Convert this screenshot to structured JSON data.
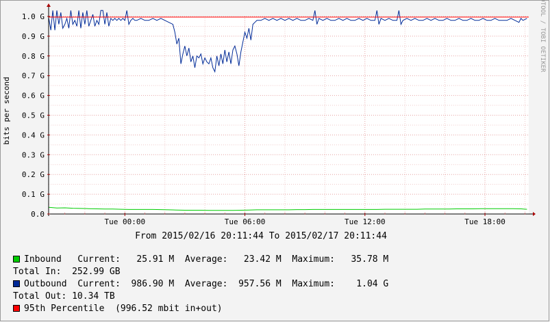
{
  "chart_data": {
    "type": "line",
    "ylabel": "bits per second",
    "watermark": "RRDTOOL / TOBI OETIKER",
    "subtitle": "From 2015/02/16 20:11:44 To 2015/02/17 20:11:44",
    "ylim": [
      0,
      1.0
    ],
    "y_ticks": [
      {
        "value": 0.0,
        "label": "0.0"
      },
      {
        "value": 0.1,
        "label": "0.1 G"
      },
      {
        "value": 0.2,
        "label": "0.2 G"
      },
      {
        "value": 0.3,
        "label": "0.3 G"
      },
      {
        "value": 0.4,
        "label": "0.4 G"
      },
      {
        "value": 0.5,
        "label": "0.5 G"
      },
      {
        "value": 0.6,
        "label": "0.6 G"
      },
      {
        "value": 0.7,
        "label": "0.7 G"
      },
      {
        "value": 0.8,
        "label": "0.8 G"
      },
      {
        "value": 0.9,
        "label": "0.9 G"
      },
      {
        "value": 1.0,
        "label": "1.0 G"
      }
    ],
    "xlim_hours": [
      -3.81,
      20.19
    ],
    "x_ticks": [
      {
        "value": 0,
        "label": "Tue 00:00"
      },
      {
        "value": 6,
        "label": "Tue 06:00"
      },
      {
        "value": 12,
        "label": "Tue 12:00"
      },
      {
        "value": 18,
        "label": "Tue 18:00"
      }
    ],
    "percentile_95_value": 0.99652,
    "series": [
      {
        "name": "Inbound",
        "color": "#00cc00",
        "points": [
          [
            -3.8,
            0.034
          ],
          [
            -3.4,
            0.03
          ],
          [
            -3.0,
            0.031
          ],
          [
            -2.6,
            0.029
          ],
          [
            -2.2,
            0.028
          ],
          [
            -1.8,
            0.027
          ],
          [
            -1.4,
            0.026
          ],
          [
            -1.0,
            0.025
          ],
          [
            -0.6,
            0.025
          ],
          [
            -0.2,
            0.024
          ],
          [
            0.2,
            0.023
          ],
          [
            0.6,
            0.023
          ],
          [
            1.0,
            0.023
          ],
          [
            1.4,
            0.023
          ],
          [
            1.8,
            0.022
          ],
          [
            2.2,
            0.021
          ],
          [
            2.6,
            0.02
          ],
          [
            3.0,
            0.019
          ],
          [
            3.4,
            0.019
          ],
          [
            3.8,
            0.019
          ],
          [
            4.2,
            0.018
          ],
          [
            4.6,
            0.018
          ],
          [
            5.0,
            0.018
          ],
          [
            5.4,
            0.018
          ],
          [
            5.8,
            0.019
          ],
          [
            6.2,
            0.02
          ],
          [
            6.6,
            0.021
          ],
          [
            7.0,
            0.021
          ],
          [
            7.4,
            0.021
          ],
          [
            7.8,
            0.021
          ],
          [
            8.2,
            0.021
          ],
          [
            8.6,
            0.022
          ],
          [
            9.0,
            0.022
          ],
          [
            9.4,
            0.023
          ],
          [
            9.8,
            0.023
          ],
          [
            10.2,
            0.023
          ],
          [
            10.6,
            0.023
          ],
          [
            11.0,
            0.023
          ],
          [
            11.4,
            0.023
          ],
          [
            11.8,
            0.023
          ],
          [
            12.2,
            0.023
          ],
          [
            12.6,
            0.023
          ],
          [
            13.0,
            0.024
          ],
          [
            13.4,
            0.024
          ],
          [
            13.8,
            0.024
          ],
          [
            14.2,
            0.024
          ],
          [
            14.6,
            0.024
          ],
          [
            15.0,
            0.025
          ],
          [
            15.4,
            0.025
          ],
          [
            15.8,
            0.025
          ],
          [
            16.2,
            0.025
          ],
          [
            16.6,
            0.026
          ],
          [
            17.0,
            0.026
          ],
          [
            17.4,
            0.026
          ],
          [
            17.8,
            0.027
          ],
          [
            18.2,
            0.027
          ],
          [
            18.6,
            0.027
          ],
          [
            19.0,
            0.027
          ],
          [
            19.4,
            0.027
          ],
          [
            19.8,
            0.026
          ],
          [
            20.1,
            0.024
          ]
        ]
      },
      {
        "name": "Outbound",
        "color": "#002a97",
        "points": [
          [
            -3.8,
            0.99
          ],
          [
            -3.7,
            0.93
          ],
          [
            -3.6,
            1.03
          ],
          [
            -3.5,
            0.93
          ],
          [
            -3.4,
            1.03
          ],
          [
            -3.3,
            0.96
          ],
          [
            -3.2,
            1.02
          ],
          [
            -3.1,
            0.94
          ],
          [
            -3.0,
            0.96
          ],
          [
            -2.9,
            0.99
          ],
          [
            -2.8,
            0.94
          ],
          [
            -2.7,
            1.03
          ],
          [
            -2.6,
            0.96
          ],
          [
            -2.5,
            0.98
          ],
          [
            -2.4,
            0.95
          ],
          [
            -2.3,
            1.03
          ],
          [
            -2.2,
            0.94
          ],
          [
            -2.1,
            1.02
          ],
          [
            -2.0,
            0.96
          ],
          [
            -1.9,
            1.03
          ],
          [
            -1.8,
            0.95
          ],
          [
            -1.7,
            0.98
          ],
          [
            -1.6,
            1.01
          ],
          [
            -1.5,
            0.95
          ],
          [
            -1.4,
            0.98
          ],
          [
            -1.3,
            0.96
          ],
          [
            -1.2,
            1.03
          ],
          [
            -1.1,
            1.03
          ],
          [
            -1.0,
            0.96
          ],
          [
            -0.9,
            1.02
          ],
          [
            -0.8,
            0.95
          ],
          [
            -0.7,
            0.99
          ],
          [
            -0.6,
            0.98
          ],
          [
            -0.5,
            0.99
          ],
          [
            -0.4,
            0.98
          ],
          [
            -0.3,
            0.99
          ],
          [
            -0.2,
            0.98
          ],
          [
            -0.1,
            0.99
          ],
          [
            0.0,
            0.98
          ],
          [
            0.1,
            1.03
          ],
          [
            0.2,
            0.96
          ],
          [
            0.3,
            0.98
          ],
          [
            0.4,
            0.99
          ],
          [
            0.5,
            0.98
          ],
          [
            0.6,
            0.98
          ],
          [
            0.8,
            0.99
          ],
          [
            1.0,
            0.98
          ],
          [
            1.2,
            0.98
          ],
          [
            1.4,
            0.99
          ],
          [
            1.6,
            0.98
          ],
          [
            1.8,
            0.99
          ],
          [
            2.0,
            0.98
          ],
          [
            2.2,
            0.97
          ],
          [
            2.4,
            0.96
          ],
          [
            2.5,
            0.92
          ],
          [
            2.6,
            0.86
          ],
          [
            2.7,
            0.89
          ],
          [
            2.8,
            0.76
          ],
          [
            2.9,
            0.81
          ],
          [
            3.0,
            0.85
          ],
          [
            3.1,
            0.8
          ],
          [
            3.2,
            0.84
          ],
          [
            3.3,
            0.77
          ],
          [
            3.4,
            0.8
          ],
          [
            3.5,
            0.74
          ],
          [
            3.6,
            0.8
          ],
          [
            3.7,
            0.79
          ],
          [
            3.8,
            0.81
          ],
          [
            3.9,
            0.76
          ],
          [
            4.0,
            0.79
          ],
          [
            4.1,
            0.77
          ],
          [
            4.2,
            0.76
          ],
          [
            4.3,
            0.79
          ],
          [
            4.4,
            0.74
          ],
          [
            4.5,
            0.72
          ],
          [
            4.6,
            0.8
          ],
          [
            4.7,
            0.75
          ],
          [
            4.8,
            0.81
          ],
          [
            4.9,
            0.76
          ],
          [
            5.0,
            0.83
          ],
          [
            5.1,
            0.77
          ],
          [
            5.2,
            0.82
          ],
          [
            5.3,
            0.76
          ],
          [
            5.4,
            0.83
          ],
          [
            5.5,
            0.85
          ],
          [
            5.6,
            0.81
          ],
          [
            5.7,
            0.75
          ],
          [
            5.8,
            0.82
          ],
          [
            5.9,
            0.87
          ],
          [
            6.0,
            0.92
          ],
          [
            6.1,
            0.89
          ],
          [
            6.2,
            0.94
          ],
          [
            6.3,
            0.88
          ],
          [
            6.4,
            0.96
          ],
          [
            6.5,
            0.97
          ],
          [
            6.6,
            0.98
          ],
          [
            6.8,
            0.98
          ],
          [
            7.0,
            0.99
          ],
          [
            7.2,
            0.98
          ],
          [
            7.4,
            0.99
          ],
          [
            7.6,
            0.98
          ],
          [
            7.8,
            0.99
          ],
          [
            8.0,
            0.98
          ],
          [
            8.2,
            0.99
          ],
          [
            8.4,
            0.98
          ],
          [
            8.6,
            0.99
          ],
          [
            8.8,
            0.98
          ],
          [
            9.0,
            0.98
          ],
          [
            9.2,
            0.99
          ],
          [
            9.4,
            0.98
          ],
          [
            9.5,
            1.03
          ],
          [
            9.6,
            0.96
          ],
          [
            9.7,
            0.99
          ],
          [
            9.9,
            0.98
          ],
          [
            10.1,
            0.99
          ],
          [
            10.3,
            0.98
          ],
          [
            10.5,
            0.98
          ],
          [
            10.7,
            0.99
          ],
          [
            10.9,
            0.98
          ],
          [
            11.1,
            0.99
          ],
          [
            11.3,
            0.98
          ],
          [
            11.5,
            0.98
          ],
          [
            11.7,
            0.99
          ],
          [
            11.9,
            0.98
          ],
          [
            12.1,
            0.99
          ],
          [
            12.3,
            0.98
          ],
          [
            12.5,
            0.98
          ],
          [
            12.6,
            1.03
          ],
          [
            12.7,
            0.96
          ],
          [
            12.8,
            0.99
          ],
          [
            13.0,
            0.98
          ],
          [
            13.2,
            0.99
          ],
          [
            13.4,
            0.98
          ],
          [
            13.6,
            0.98
          ],
          [
            13.7,
            1.03
          ],
          [
            13.8,
            0.96
          ],
          [
            13.9,
            0.98
          ],
          [
            14.1,
            0.99
          ],
          [
            14.3,
            0.98
          ],
          [
            14.5,
            0.99
          ],
          [
            14.7,
            0.98
          ],
          [
            14.9,
            0.98
          ],
          [
            15.1,
            0.99
          ],
          [
            15.3,
            0.98
          ],
          [
            15.5,
            0.99
          ],
          [
            15.7,
            0.98
          ],
          [
            15.9,
            0.98
          ],
          [
            16.1,
            0.99
          ],
          [
            16.3,
            0.98
          ],
          [
            16.5,
            0.98
          ],
          [
            16.7,
            0.99
          ],
          [
            16.9,
            0.98
          ],
          [
            17.1,
            0.98
          ],
          [
            17.3,
            0.99
          ],
          [
            17.5,
            0.98
          ],
          [
            17.7,
            0.98
          ],
          [
            17.9,
            0.99
          ],
          [
            18.1,
            0.98
          ],
          [
            18.3,
            0.98
          ],
          [
            18.5,
            0.99
          ],
          [
            18.7,
            0.98
          ],
          [
            18.9,
            0.98
          ],
          [
            19.1,
            0.98
          ],
          [
            19.3,
            0.99
          ],
          [
            19.5,
            0.98
          ],
          [
            19.7,
            0.97
          ],
          [
            19.8,
            0.99
          ],
          [
            19.9,
            0.98
          ],
          [
            20.1,
            0.99
          ]
        ]
      }
    ]
  },
  "legend": {
    "inbound": {
      "name": "Inbound",
      "current": "Current:   25.91 M",
      "average": "Average:   23.42 M",
      "maximum": "Maximum:   35.78 M",
      "total": "Total In:  252.99 GB",
      "color": "#00cc00"
    },
    "outbound": {
      "name": "Outbound",
      "current": "Current:  986.90 M",
      "average": "Average:  957.56 M",
      "maximum": "Maximum:    1.04 G",
      "total": "Total Out: 10.34 TB",
      "color": "#002a97"
    },
    "percentile": {
      "name": "95th Percentile",
      "detail": "(996.52 mbit in+out)",
      "color": "#ff0000"
    }
  }
}
